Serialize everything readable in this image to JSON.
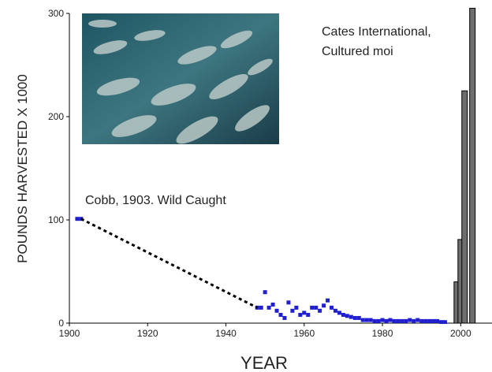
{
  "chart_data": {
    "type": "combo",
    "xlabel": "YEAR",
    "ylabel": "POUNDS HARVESTED X 1000",
    "xlim": [
      1900,
      2008
    ],
    "ylim": [
      0,
      300
    ],
    "xticks": [
      1900,
      1920,
      1940,
      1960,
      1980,
      2000
    ],
    "yticks": [
      0,
      100,
      200,
      300
    ],
    "annotations": [
      {
        "lines": [
          "Cates International,",
          "Cultured moi"
        ]
      },
      {
        "lines": [
          "Cobb, 1903. Wild Caught"
        ]
      }
    ],
    "series": [
      {
        "type": "scatter",
        "color": "#1f1fd0",
        "x": [
          1902,
          1903,
          1948,
          1949,
          1950,
          1951,
          1952,
          1953,
          1954,
          1955,
          1956,
          1957,
          1958,
          1959,
          1960,
          1961,
          1962,
          1963,
          1964,
          1965,
          1966,
          1967,
          1968,
          1969,
          1970,
          1971,
          1972,
          1973,
          1974,
          1975,
          1976,
          1977,
          1978,
          1979,
          1980,
          1981,
          1982,
          1983,
          1984,
          1985,
          1986,
          1987,
          1988,
          1989,
          1990,
          1991,
          1992,
          1993,
          1994,
          1995,
          1996
        ],
        "values": [
          101,
          101,
          15,
          15,
          30,
          15,
          18,
          12,
          8,
          5,
          20,
          12,
          15,
          8,
          10,
          8,
          15,
          15,
          12,
          17,
          22,
          15,
          12,
          10,
          8,
          7,
          6,
          5,
          5,
          3,
          3,
          3,
          2,
          2,
          3,
          2,
          3,
          2,
          2,
          2,
          2,
          3,
          2,
          3,
          2,
          2,
          2,
          2,
          2,
          1,
          1
        ]
      },
      {
        "type": "line",
        "color": "#000000",
        "dashed": true,
        "x": [
          1903,
          1948
        ],
        "values": [
          101,
          15
        ]
      },
      {
        "type": "bar",
        "color": "#6e6e6e",
        "x": [
          1999,
          2000,
          2001,
          2003
        ],
        "values": [
          40,
          81,
          225,
          305
        ]
      }
    ]
  }
}
